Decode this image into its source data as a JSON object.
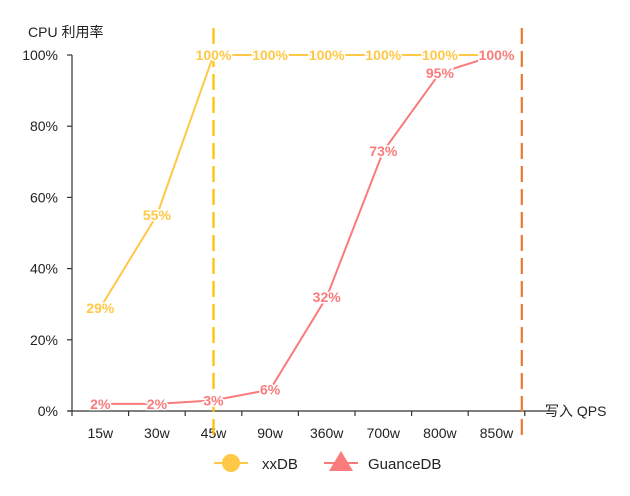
{
  "chart_data": {
    "type": "line",
    "title": "",
    "ylabel": "CPU 利用率",
    "xlabel": "写入 QPS",
    "categories": [
      "15w",
      "30w",
      "45w",
      "90w",
      "360w",
      "700w",
      "800w",
      "850w"
    ],
    "ylim": [
      0,
      100
    ],
    "yticks": [
      "0%",
      "20%",
      "40%",
      "60%",
      "80%",
      "100%"
    ],
    "grid": false,
    "legend_position": "bottom",
    "series": [
      {
        "name": "xxDB",
        "marker": "circle",
        "color": "#FFC847",
        "values": [
          29,
          55,
          100,
          100,
          100,
          100,
          100,
          100
        ]
      },
      {
        "name": "GuanceDB",
        "marker": "triangle",
        "color": "#F97B7B",
        "values": [
          2,
          2,
          3,
          6,
          32,
          73,
          95,
          100
        ]
      }
    ],
    "reference_lines": [
      {
        "category": "45w",
        "color": "#FFC000",
        "style": "dashed"
      },
      {
        "category": "850w",
        "color": "#E97A2E",
        "style": "dashed"
      }
    ]
  }
}
